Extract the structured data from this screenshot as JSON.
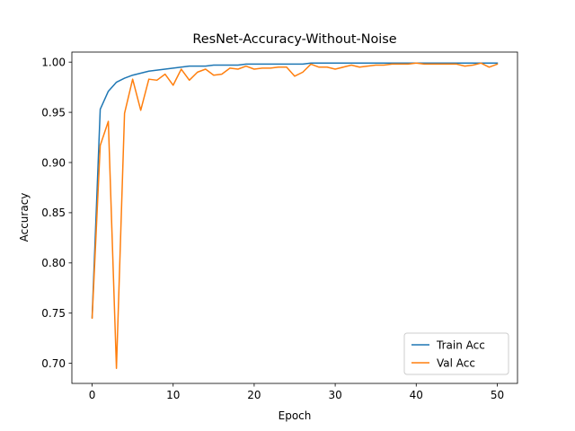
{
  "chart_data": {
    "type": "line",
    "title": "ResNet-Accuracy-Without-Noise",
    "xlabel": "Epoch",
    "ylabel": "Accuracy",
    "xlim": [
      -2.5,
      52.5
    ],
    "ylim": [
      0.68,
      1.01
    ],
    "xticks": [
      0,
      10,
      20,
      30,
      40,
      50
    ],
    "yticks": [
      0.7,
      0.75,
      0.8,
      0.85,
      0.9,
      0.95,
      1.0
    ],
    "xtick_labels": [
      "0",
      "10",
      "20",
      "30",
      "40",
      "50"
    ],
    "ytick_labels": [
      "0.70",
      "0.75",
      "0.80",
      "0.85",
      "0.90",
      "0.95",
      "1.00"
    ],
    "grid": false,
    "legend_position": "lower-right",
    "x": [
      0,
      1,
      2,
      3,
      4,
      5,
      6,
      7,
      8,
      9,
      10,
      11,
      12,
      13,
      14,
      15,
      16,
      17,
      18,
      19,
      20,
      21,
      22,
      23,
      24,
      25,
      26,
      27,
      28,
      29,
      30,
      31,
      32,
      33,
      34,
      35,
      36,
      37,
      38,
      39,
      40,
      41,
      42,
      43,
      44,
      45,
      46,
      47,
      48,
      49,
      50
    ],
    "series": [
      {
        "name": "Train Acc",
        "color": "#1f77b4",
        "values": [
          0.746,
          0.953,
          0.971,
          0.98,
          0.984,
          0.987,
          0.989,
          0.991,
          0.992,
          0.993,
          0.994,
          0.995,
          0.996,
          0.996,
          0.996,
          0.997,
          0.997,
          0.997,
          0.997,
          0.998,
          0.998,
          0.998,
          0.998,
          0.998,
          0.998,
          0.998,
          0.998,
          0.999,
          0.999,
          0.999,
          0.999,
          0.999,
          0.999,
          0.999,
          0.999,
          0.999,
          0.999,
          0.999,
          0.999,
          0.999,
          0.999,
          0.999,
          0.999,
          0.999,
          0.999,
          0.999,
          0.999,
          0.999,
          0.999,
          0.999,
          0.999
        ]
      },
      {
        "name": "Val Acc",
        "color": "#ff7f0e",
        "values": [
          0.745,
          0.917,
          0.941,
          0.695,
          0.949,
          0.983,
          0.952,
          0.983,
          0.982,
          0.988,
          0.977,
          0.993,
          0.982,
          0.99,
          0.993,
          0.987,
          0.988,
          0.994,
          0.993,
          0.996,
          0.993,
          0.994,
          0.994,
          0.995,
          0.995,
          0.986,
          0.99,
          0.998,
          0.995,
          0.995,
          0.993,
          0.995,
          0.997,
          0.995,
          0.996,
          0.997,
          0.997,
          0.998,
          0.998,
          0.998,
          0.999,
          0.998,
          0.998,
          0.998,
          0.998,
          0.998,
          0.996,
          0.997,
          0.999,
          0.995,
          0.998
        ]
      }
    ]
  }
}
